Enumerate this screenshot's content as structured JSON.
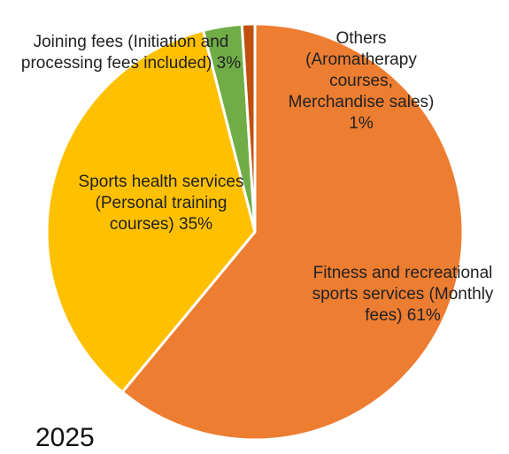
{
  "chart_data": {
    "type": "pie",
    "title": "2025",
    "categories": [
      "Fitness and recreational sports services (Monthly fees)",
      "Sports health services (Personal training courses)",
      "Joining fees (Initiation and processing fees included)",
      "Others (Aromatherapy courses, Merchandise sales)"
    ],
    "values": [
      61,
      35,
      3,
      1
    ],
    "value_labels": [
      "61%",
      "35%",
      "3%",
      "1%"
    ],
    "colors": [
      "#ED7D31",
      "#FFC000",
      "#70AD47",
      "#C0500F"
    ]
  }
}
